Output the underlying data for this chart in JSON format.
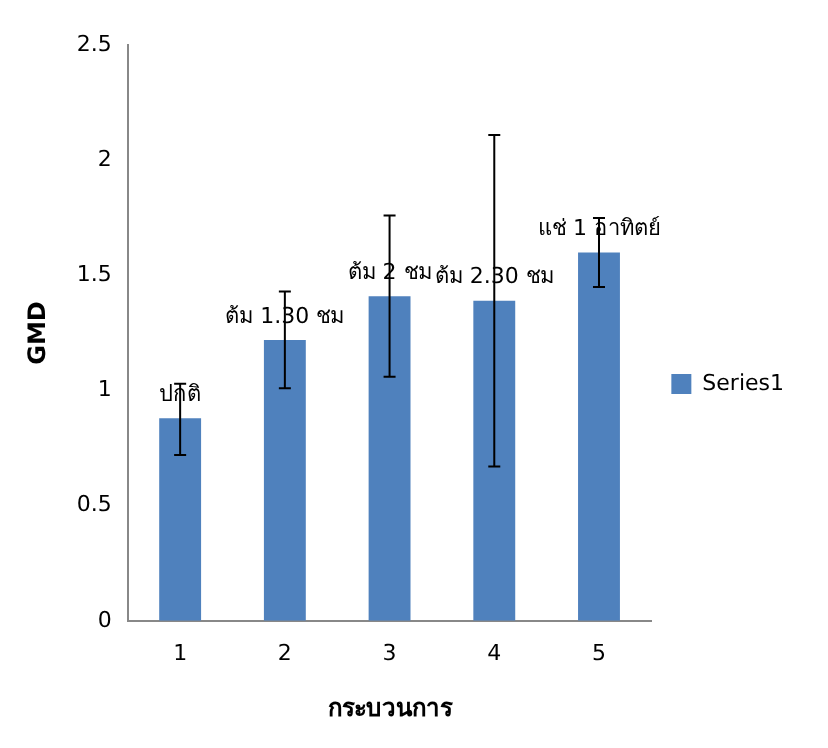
{
  "chart_data": {
    "type": "bar",
    "xlabel": "กระบวนการ",
    "ylabel": "GMD",
    "categories": [
      "1",
      "2",
      "3",
      "4",
      "5"
    ],
    "series": [
      {
        "name": "Series1",
        "color": "#4f81bd",
        "values": [
          0.88,
          1.22,
          1.41,
          1.39,
          1.6
        ],
        "errors": [
          [
            0.72,
            1.03
          ],
          [
            1.01,
            1.43
          ],
          [
            1.06,
            1.76
          ],
          [
            0.67,
            2.11
          ],
          [
            1.45,
            1.75
          ]
        ]
      }
    ],
    "ylim": [
      0,
      2.5
    ],
    "yticks": [
      0,
      0.5,
      1,
      1.5,
      2,
      2.5
    ],
    "grid": false,
    "legend": "right",
    "annotations": [
      {
        "text": "ปกติ",
        "x": "1",
        "y": 0.88
      },
      {
        "text": "ต้ม 1.30 ชม",
        "x": "2",
        "y": 1.22
      },
      {
        "text": "ต้ม 2 ชม",
        "x": "3",
        "y": 1.41
      },
      {
        "text": "ต้ม 2.30 ชม",
        "x": "4",
        "y": 1.39
      },
      {
        "text": "แช่ 1 อาทิตย์",
        "x": "5",
        "y": 1.6
      }
    ]
  }
}
